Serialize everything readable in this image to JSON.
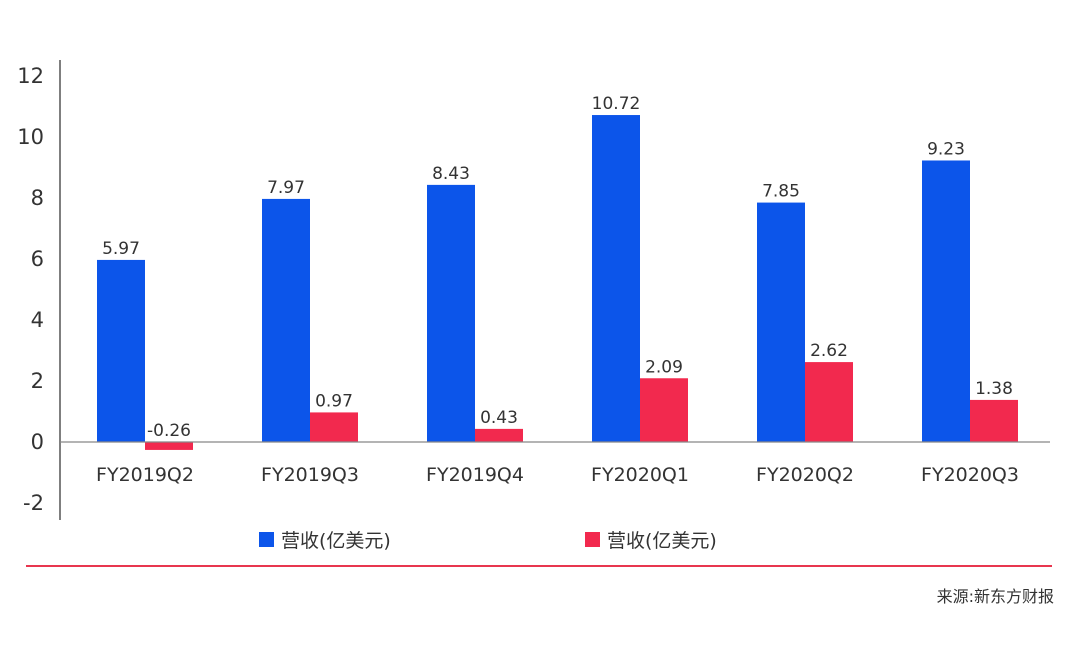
{
  "chart_data": {
    "type": "bar",
    "categories": [
      "FY2019Q2",
      "FY2019Q3",
      "FY2019Q4",
      "FY2020Q1",
      "FY2020Q2",
      "FY2020Q3"
    ],
    "series": [
      {
        "name": "营收(亿美元)",
        "color": "#0c55ea",
        "values": [
          5.97,
          7.97,
          8.43,
          10.72,
          7.85,
          9.23
        ]
      },
      {
        "name": "营收(亿美元)",
        "color": "#f2294e",
        "values": [
          -0.26,
          0.97,
          0.43,
          2.09,
          2.62,
          1.38
        ]
      }
    ],
    "data_labels": [
      [
        "5.97",
        "7.97",
        "8.43",
        "10.72",
        "7.85",
        "9.23"
      ],
      [
        "-0.26",
        "0.97",
        "0.43",
        "2.09",
        "2.62",
        "1.38"
      ]
    ],
    "y_ticks": [
      "12",
      "10",
      "8",
      "6",
      "4",
      "2",
      "0",
      "-2"
    ],
    "ylim": [
      -2,
      12
    ],
    "title": "",
    "xlabel": "",
    "ylabel": "",
    "grid": false,
    "legend_position": "bottom"
  },
  "legend": [
    {
      "label": "营收(亿美元)",
      "color": "#0c55ea"
    },
    {
      "label": "营收(亿美元)",
      "color": "#f2294e"
    }
  ],
  "footer": {
    "source": "来源:新东方财报",
    "line_color": "#e8364f"
  }
}
